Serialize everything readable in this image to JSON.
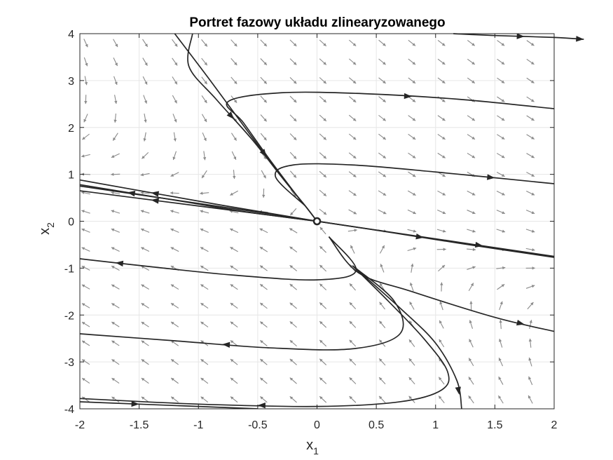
{
  "chart_data": {
    "type": "phase-portrait",
    "title": "Portret fazowy układu zlinearyzowanego",
    "xlabel": {
      "base": "x",
      "subscript": "1"
    },
    "ylabel": {
      "base": "x",
      "subscript": "2"
    },
    "xlim": [
      -2,
      2
    ],
    "ylim": [
      -4,
      4
    ],
    "x_ticks": [
      "-2",
      "-1.5",
      "-1",
      "-0.5",
      "0",
      "0.5",
      "1",
      "1.5",
      "2"
    ],
    "y_ticks": [
      "4",
      "3",
      "2",
      "1",
      "0",
      "-1",
      "-2",
      "-3",
      "-4"
    ],
    "grid": true,
    "equilibrium": {
      "x": 0,
      "y": 0
    },
    "colors": {
      "trajectory": "#262626",
      "vector": "#8a8a8a",
      "grid": "#e6e6e6",
      "axes": "#262626"
    },
    "slow_direction": {
      "slope": -0.39
    },
    "fast_direction": {
      "slope": -3.3
    },
    "trajectories": [
      {
        "points": [
          [
            1.15,
            4.0
          ],
          [
            1.5,
            3.96
          ],
          [
            2.0,
            3.92
          ],
          [
            2.25,
            3.88
          ]
        ],
        "arrow_at": 1
      },
      {
        "points": [
          [
            -1.2,
            4.0
          ],
          [
            -0.9,
            3.0
          ],
          [
            -0.55,
            1.8
          ],
          [
            -0.3,
            0.95
          ],
          [
            -0.1,
            0.33
          ],
          [
            0.0,
            0.0
          ]
        ],
        "arrow_at": 2
      },
      {
        "points": [
          [
            -1.05,
            4.0
          ],
          [
            -1.08,
            3.3
          ],
          [
            -0.85,
            2.6
          ],
          [
            -0.55,
            1.75
          ],
          [
            -0.3,
            0.95
          ],
          [
            -0.1,
            0.33
          ],
          [
            0.0,
            0.0
          ]
        ],
        "arrow_at": 2
      },
      {
        "points": [
          [
            -0.12,
            0.38
          ],
          [
            -0.38,
            1.25
          ],
          [
            -0.62,
            2.1
          ],
          [
            -0.75,
            2.55
          ],
          [
            -0.3,
            2.74
          ],
          [
            0.4,
            2.72
          ],
          [
            1.2,
            2.6
          ],
          [
            2.0,
            2.4
          ]
        ],
        "arrow_at": 5
      },
      {
        "points": [
          [
            -0.1,
            0.33
          ],
          [
            -0.35,
            0.95
          ],
          [
            -0.2,
            1.2
          ],
          [
            0.3,
            1.2
          ],
          [
            1.0,
            1.05
          ],
          [
            2.0,
            0.8
          ]
        ],
        "arrow_at": 4
      },
      {
        "points": [
          [
            0.0,
            0.0
          ],
          [
            -0.6,
            0.2
          ],
          [
            -1.2,
            0.45
          ],
          [
            -2.0,
            0.78
          ]
        ],
        "arrow_at": 2
      },
      {
        "points": [
          [
            0.0,
            0.0
          ],
          [
            -0.8,
            0.34
          ],
          [
            -2.0,
            0.88
          ]
        ],
        "arrow_at": 2
      },
      {
        "points": [
          [
            0.0,
            0.0
          ],
          [
            -0.8,
            0.26
          ],
          [
            -2.0,
            0.65
          ]
        ],
        "arrow_at": 2
      },
      {
        "points": [
          [
            -2.0,
            0.75
          ],
          [
            -1.0,
            0.38
          ],
          [
            -0.3,
            0.12
          ],
          [
            0.0,
            0.0
          ],
          [
            0.6,
            -0.23
          ],
          [
            1.2,
            -0.47
          ],
          [
            2.0,
            -0.77
          ]
        ],
        "arrow_at": 4
      },
      {
        "points": [
          [
            0.0,
            0.0
          ],
          [
            0.8,
            -0.3
          ],
          [
            2.0,
            -0.75
          ]
        ],
        "arrow_at": 1
      },
      {
        "points": [
          [
            0.1,
            -0.33
          ],
          [
            0.33,
            -1.05
          ],
          [
            0.0,
            -1.25
          ],
          [
            -0.7,
            -1.15
          ],
          [
            -1.4,
            -0.97
          ],
          [
            -2.0,
            -0.8
          ]
        ],
        "arrow_at": 4
      },
      {
        "points": [
          [
            0.1,
            -0.33
          ],
          [
            0.35,
            -1.1
          ],
          [
            0.8,
            -1.5
          ],
          [
            1.5,
            -2.05
          ],
          [
            2.0,
            -2.35
          ]
        ],
        "arrow_at": 3
      },
      {
        "points": [
          [
            0.3,
            -0.95
          ],
          [
            0.65,
            -1.7
          ],
          [
            0.7,
            -2.4
          ],
          [
            0.3,
            -2.72
          ],
          [
            -0.4,
            -2.7
          ],
          [
            -1.2,
            -2.55
          ],
          [
            -2.0,
            -2.4
          ]
        ],
        "arrow_at": 4
      },
      {
        "points": [
          [
            0.3,
            -0.95
          ],
          [
            0.6,
            -1.7
          ],
          [
            0.9,
            -2.5
          ],
          [
            1.1,
            -3.2
          ],
          [
            1.05,
            -3.6
          ],
          [
            0.7,
            -3.85
          ],
          [
            0.0,
            -3.95
          ],
          [
            -1.0,
            -3.9
          ],
          [
            -2.0,
            -3.78
          ]
        ],
        "arrow_at": 6
      },
      {
        "points": [
          [
            0.3,
            -0.95
          ],
          [
            0.7,
            -1.85
          ],
          [
            1.0,
            -2.6
          ],
          [
            1.18,
            -3.4
          ],
          [
            1.22,
            -4.0
          ]
        ],
        "arrow_at": 3
      },
      {
        "points": [
          [
            -2.0,
            -3.85
          ],
          [
            -1.0,
            -3.95
          ],
          [
            -0.5,
            -4.0
          ]
        ],
        "arrow_at": 0
      }
    ]
  }
}
